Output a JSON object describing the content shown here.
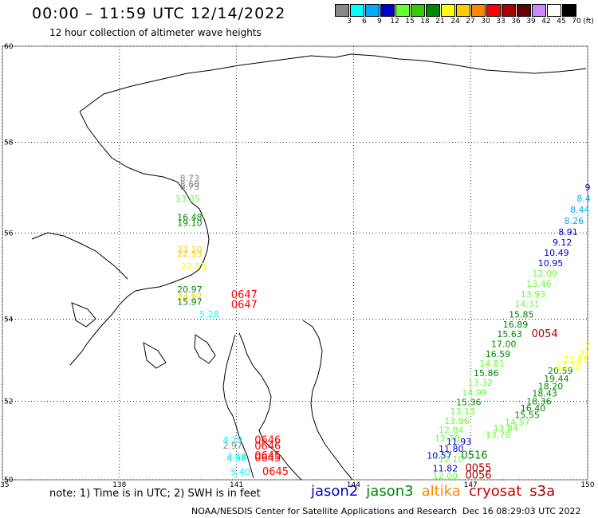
{
  "header": {
    "title": "00:00 – 11:59 UTC 12/14/2022",
    "subtitle": "12 hour collection of altimeter wave heights"
  },
  "legend": {
    "swatches": [
      {
        "color": "#888888",
        "label": "3"
      },
      {
        "color": "#00ffff",
        "label": "6"
      },
      {
        "color": "#00aaff",
        "label": "9"
      },
      {
        "color": "#0000cc",
        "label": "12"
      },
      {
        "color": "#66ff33",
        "label": "15"
      },
      {
        "color": "#33cc00",
        "label": "18"
      },
      {
        "color": "#008800",
        "label": "21"
      },
      {
        "color": "#ffff00",
        "label": "24"
      },
      {
        "color": "#ffcc00",
        "label": "27"
      },
      {
        "color": "#ff8800",
        "label": "30"
      },
      {
        "color": "#ff0000",
        "label": "33"
      },
      {
        "color": "#aa0000",
        "label": "36"
      },
      {
        "color": "#660000",
        "label": "39"
      },
      {
        "color": "#cc88ff",
        "label": "42"
      },
      {
        "color": "#ffffff",
        "label": "45"
      },
      {
        "color": "#000000",
        "label": "70"
      }
    ],
    "unit": "(ft)"
  },
  "axes": {
    "lon_labels": [
      "135",
      "138",
      "141",
      "144",
      "147",
      "150"
    ],
    "lat_labels": [
      "60",
      "58",
      "56",
      "54",
      "52",
      "50"
    ]
  },
  "observations": [
    {
      "text": "8.73",
      "color": "#888888",
      "lon": 139.8,
      "lat": 57.15
    },
    {
      "text": "8.60",
      "color": "#888888",
      "lon": 139.8,
      "lat": 57.02
    },
    {
      "text": "8.73",
      "color": "#888888",
      "lon": 139.8,
      "lat": 56.97
    },
    {
      "text": "13.35",
      "color": "#66ff33",
      "lon": 139.75,
      "lat": 56.7
    },
    {
      "text": "16.48",
      "color": "#008800",
      "lon": 139.8,
      "lat": 56.28
    },
    {
      "text": "19.10",
      "color": "#008800",
      "lon": 139.8,
      "lat": 56.16
    },
    {
      "text": "23.10",
      "color": "#ffcc00",
      "lon": 139.8,
      "lat": 55.55
    },
    {
      "text": "22.53",
      "color": "#ffcc00",
      "lon": 139.8,
      "lat": 55.45
    },
    {
      "text": "22.53",
      "color": "#ffff00",
      "lon": 139.9,
      "lat": 55.17
    },
    {
      "text": "20.97",
      "color": "#008800",
      "lon": 139.8,
      "lat": 54.63
    },
    {
      "text": "24.97",
      "color": "#ffcc00",
      "lon": 139.8,
      "lat": 54.45
    },
    {
      "text": "15.97",
      "color": "#008800",
      "lon": 139.8,
      "lat": 54.34
    },
    {
      "text": "5.28",
      "color": "#00ffff",
      "lon": 140.3,
      "lat": 54.05
    },
    {
      "text": "0647",
      "color": "#ff0000",
      "lon": 141.2,
      "lat": 54.5,
      "big": true
    },
    {
      "text": "0647",
      "color": "#ff0000",
      "lon": 141.2,
      "lat": 54.26,
      "big": true
    },
    {
      "text": "4.29",
      "color": "#00ffff",
      "lon": 140.9,
      "lat": 50.95
    },
    {
      "text": "2.97",
      "color": "#888888",
      "lon": 140.9,
      "lat": 50.8
    },
    {
      "text": "4.49",
      "color": "#00ffff",
      "lon": 141.0,
      "lat": 50.53
    },
    {
      "text": "4.98",
      "color": "#00ffff",
      "lon": 141.0,
      "lat": 50.47
    },
    {
      "text": "5.40",
      "color": "#00ffff",
      "lon": 141.1,
      "lat": 50.12
    },
    {
      "text": "0646",
      "color": "#ff0000",
      "lon": 141.8,
      "lat": 50.93,
      "big": true
    },
    {
      "text": "0646",
      "color": "#ff0000",
      "lon": 141.8,
      "lat": 50.78,
      "big": true
    },
    {
      "text": "0645",
      "color": "#ff0000",
      "lon": 141.8,
      "lat": 50.54,
      "big": true
    },
    {
      "text": "0645",
      "color": "#ff0000",
      "lon": 141.8,
      "lat": 50.47,
      "big": true
    },
    {
      "text": "0645",
      "color": "#ff0000",
      "lon": 142.0,
      "lat": 50.12,
      "big": true
    },
    {
      "text": "9",
      "color": "#0000cc",
      "lon": 150.0,
      "lat": 56.95
    },
    {
      "text": "8.4",
      "color": "#00aaff",
      "lon": 149.9,
      "lat": 56.7
    },
    {
      "text": "8.44",
      "color": "#00aaff",
      "lon": 149.8,
      "lat": 56.45
    },
    {
      "text": "8.26",
      "color": "#00aaff",
      "lon": 149.65,
      "lat": 56.2
    },
    {
      "text": "8.91",
      "color": "#0000cc",
      "lon": 149.5,
      "lat": 55.95
    },
    {
      "text": "9.12",
      "color": "#0000cc",
      "lon": 149.35,
      "lat": 55.72
    },
    {
      "text": "10.49",
      "color": "#0000cc",
      "lon": 149.2,
      "lat": 55.48
    },
    {
      "text": "10.95",
      "color": "#0000cc",
      "lon": 149.05,
      "lat": 55.24
    },
    {
      "text": "12.09",
      "color": "#66ff33",
      "lon": 148.9,
      "lat": 55.0
    },
    {
      "text": "13.46",
      "color": "#66ff33",
      "lon": 148.75,
      "lat": 54.76
    },
    {
      "text": "13.93",
      "color": "#66ff33",
      "lon": 148.6,
      "lat": 54.52
    },
    {
      "text": "14.31",
      "color": "#66ff33",
      "lon": 148.45,
      "lat": 54.28
    },
    {
      "text": "15.85",
      "color": "#008800",
      "lon": 148.3,
      "lat": 54.04
    },
    {
      "text": "16.89",
      "color": "#008800",
      "lon": 148.15,
      "lat": 53.8
    },
    {
      "text": "15.63",
      "color": "#008800",
      "lon": 148.0,
      "lat": 53.57
    },
    {
      "text": "0054",
      "color": "#aa0000",
      "lon": 148.9,
      "lat": 53.57,
      "big": true
    },
    {
      "text": "17.00",
      "color": "#008800",
      "lon": 147.85,
      "lat": 53.33
    },
    {
      "text": "16.59",
      "color": "#008800",
      "lon": 147.7,
      "lat": 53.09
    },
    {
      "text": "14.81",
      "color": "#66ff33",
      "lon": 147.55,
      "lat": 52.85
    },
    {
      "text": "15.86",
      "color": "#008800",
      "lon": 147.4,
      "lat": 52.62
    },
    {
      "text": "13.32",
      "color": "#66ff33",
      "lon": 147.25,
      "lat": 52.38
    },
    {
      "text": "14.99",
      "color": "#66ff33",
      "lon": 147.1,
      "lat": 52.14
    },
    {
      "text": "15.36",
      "color": "#008800",
      "lon": 146.95,
      "lat": 51.9
    },
    {
      "text": "13.13",
      "color": "#66ff33",
      "lon": 146.8,
      "lat": 51.67
    },
    {
      "text": "13.86",
      "color": "#66ff33",
      "lon": 146.65,
      "lat": 51.43
    },
    {
      "text": "12.84",
      "color": "#66ff33",
      "lon": 146.5,
      "lat": 51.2
    },
    {
      "text": "12.78",
      "color": "#66ff33",
      "lon": 146.4,
      "lat": 50.98
    },
    {
      "text": "11.93",
      "color": "#0000cc",
      "lon": 146.7,
      "lat": 50.9
    },
    {
      "text": "11.80",
      "color": "#0000cc",
      "lon": 146.5,
      "lat": 50.72
    },
    {
      "text": "10.57",
      "color": "#0000cc",
      "lon": 146.2,
      "lat": 50.55
    },
    {
      "text": "12.10",
      "color": "#66ff33",
      "lon": 146.5,
      "lat": 50.45
    },
    {
      "text": "0516",
      "color": "#008800",
      "lon": 147.1,
      "lat": 50.55,
      "big": true
    },
    {
      "text": "11.82",
      "color": "#0000cc",
      "lon": 146.35,
      "lat": 50.22
    },
    {
      "text": "12.00",
      "color": "#66ff33",
      "lon": 146.35,
      "lat": 50.02
    },
    {
      "text": "0055",
      "color": "#aa0000",
      "lon": 147.2,
      "lat": 50.22,
      "big": true
    },
    {
      "text": "0056",
      "color": "#aa0000",
      "lon": 147.2,
      "lat": 50.03,
      "big": true
    },
    {
      "text": "20.59",
      "color": "#008800",
      "lon": 149.3,
      "lat": 52.68
    },
    {
      "text": "19.44",
      "color": "#008800",
      "lon": 149.2,
      "lat": 52.48
    },
    {
      "text": "18.20",
      "color": "#008800",
      "lon": 149.05,
      "lat": 52.3
    },
    {
      "text": "18.43",
      "color": "#008800",
      "lon": 148.9,
      "lat": 52.12
    },
    {
      "text": "18.36",
      "color": "#008800",
      "lon": 148.75,
      "lat": 51.92
    },
    {
      "text": "16.40",
      "color": "#008800",
      "lon": 148.6,
      "lat": 51.75
    },
    {
      "text": "15.55",
      "color": "#008800",
      "lon": 148.45,
      "lat": 51.58
    },
    {
      "text": "14.57",
      "color": "#66ff33",
      "lon": 148.2,
      "lat": 51.4
    },
    {
      "text": "13.84",
      "color": "#66ff33",
      "lon": 147.9,
      "lat": 51.25
    },
    {
      "text": "13.78",
      "color": "#66ff33",
      "lon": 147.7,
      "lat": 51.08
    },
    {
      "text": "2",
      "color": "#ffff00",
      "lon": 150.0,
      "lat": 53.3
    },
    {
      "text": "23",
      "color": "#ffff00",
      "lon": 149.9,
      "lat": 53.1
    },
    {
      "text": "23.85",
      "color": "#ffff00",
      "lon": 149.7,
      "lat": 52.95
    },
    {
      "text": "22.79",
      "color": "#ffff00",
      "lon": 149.5,
      "lat": 52.8
    }
  ],
  "footer": {
    "note": "note: 1) Time is in UTC; 2) SWH is in feet",
    "satellites": [
      {
        "name": "jason2",
        "color": "#0000cc"
      },
      {
        "name": "jason3",
        "color": "#008800"
      },
      {
        "name": "altika",
        "color": "#ff8800"
      },
      {
        "name": "cryosat",
        "color": "#cc0000"
      },
      {
        "name": "s3a",
        "color": "#aa0000"
      }
    ],
    "credit": "NOAA/NESDIS Center for Satellite Applications and Research",
    "stamp": "Dec 16 08:29:03 UTC 2022"
  }
}
